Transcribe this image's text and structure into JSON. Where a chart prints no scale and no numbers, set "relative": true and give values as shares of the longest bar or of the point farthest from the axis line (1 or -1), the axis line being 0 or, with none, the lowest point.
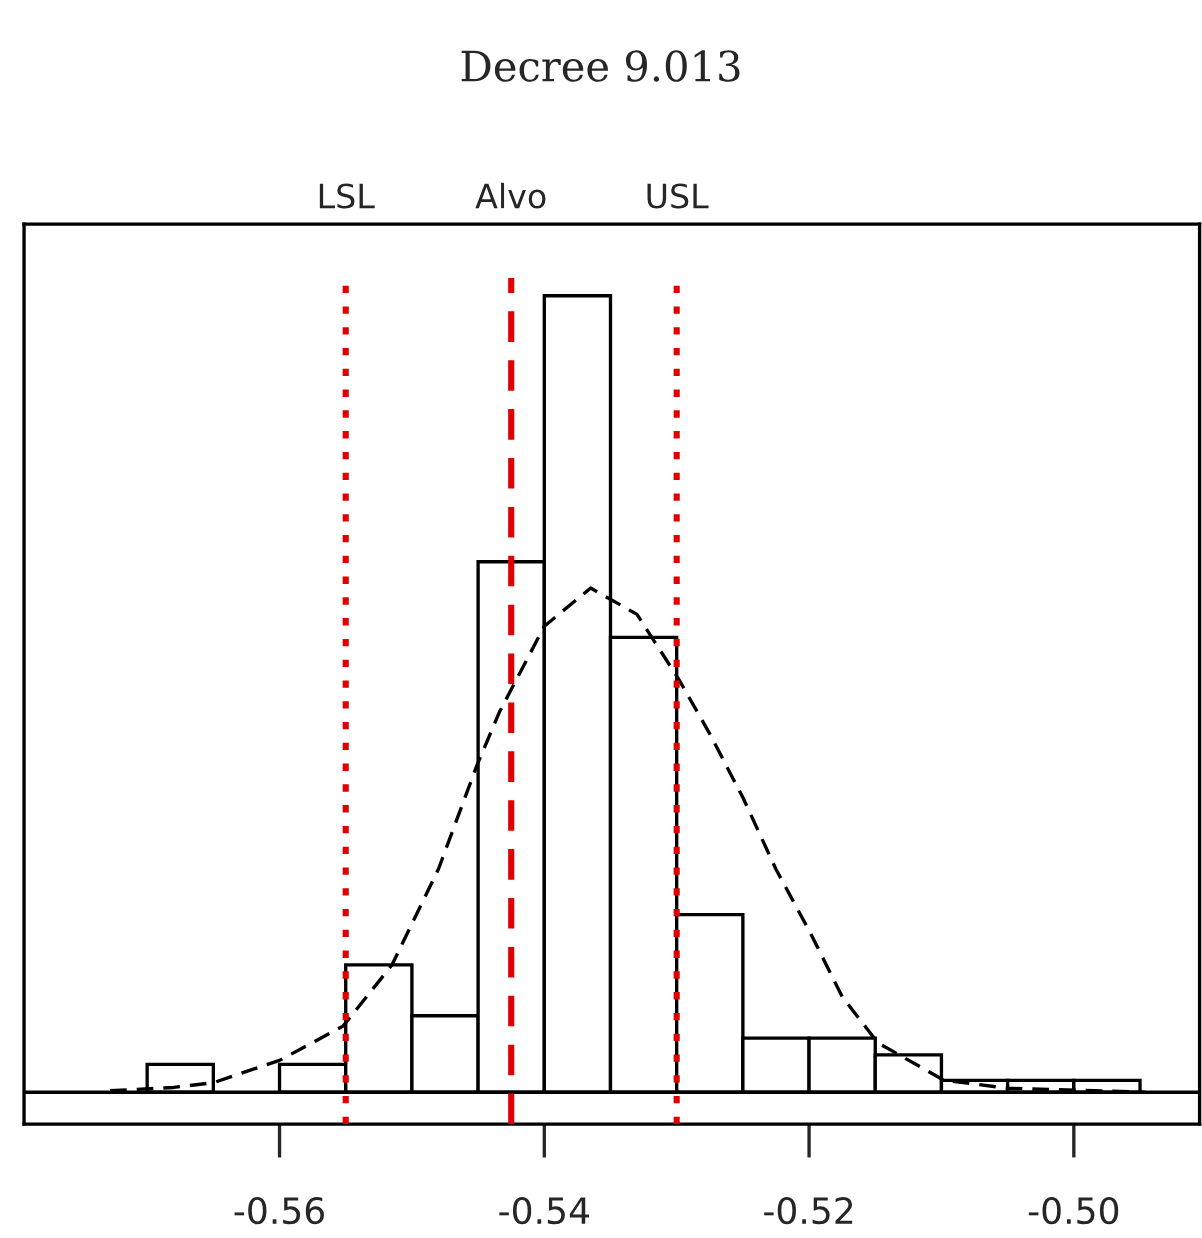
{
  "chart_data": {
    "type": "histogram",
    "title": "Decree 9.013",
    "relative": true,
    "bins": [
      -0.57,
      -0.565,
      -0.56,
      -0.555,
      -0.55,
      -0.545,
      -0.54,
      -0.535,
      -0.53,
      -0.525,
      -0.52,
      -0.515,
      -0.51,
      -0.505,
      -0.5,
      -0.495
    ],
    "values": [
      0.035,
      0,
      0.035,
      0.16,
      0.096,
      0.666,
      1,
      0.571,
      0.223,
      0.068,
      0.068,
      0.047,
      0.015,
      0.015,
      0.015
    ],
    "color": "#ffffff",
    "series": [
      {
        "type": "line",
        "color": "#000000",
        "line_style": "dashed",
        "x": [
          -0.5728,
          -0.568,
          -0.565,
          -0.56,
          -0.5552,
          -0.5515,
          -0.548,
          -0.5451,
          -0.5434,
          -0.54,
          -0.5365,
          -0.533,
          -0.5299,
          -0.5275,
          -0.525,
          -0.5225,
          -0.5199,
          -0.5175,
          -0.5148,
          -0.5098,
          -0.505,
          -0.4946
        ],
        "values": [
          0.002,
          0.006,
          0.012,
          0.04,
          0.083,
          0.16,
          0.28,
          0.41,
          0.477,
          0.585,
          0.633,
          0.6,
          0.52,
          0.45,
          0.37,
          0.28,
          0.2,
          0.12,
          0.062,
          0.015,
          0.005,
          0.0
        ]
      }
    ],
    "xlim": [
      -0.5793,
      -0.4905
    ],
    "xticks": [
      {
        "value": -0.56,
        "label": "-0.56"
      },
      {
        "value": -0.54,
        "label": "-0.54"
      },
      {
        "value": -0.52,
        "label": "-0.52"
      },
      {
        "value": -0.5,
        "label": "-0.50"
      }
    ],
    "ref_lines": [
      {
        "axis": "x",
        "value": -0.555,
        "label": "LSL",
        "color": "#e00000",
        "line_style": "dotted"
      },
      {
        "axis": "x",
        "value": -0.5425,
        "label": "Alvo",
        "color": "#e00000",
        "line_style": "dashed"
      },
      {
        "axis": "x",
        "value": -0.53,
        "label": "USL",
        "color": "#e00000",
        "line_style": "dotted"
      }
    ],
    "grid": false,
    "legend": false
  }
}
